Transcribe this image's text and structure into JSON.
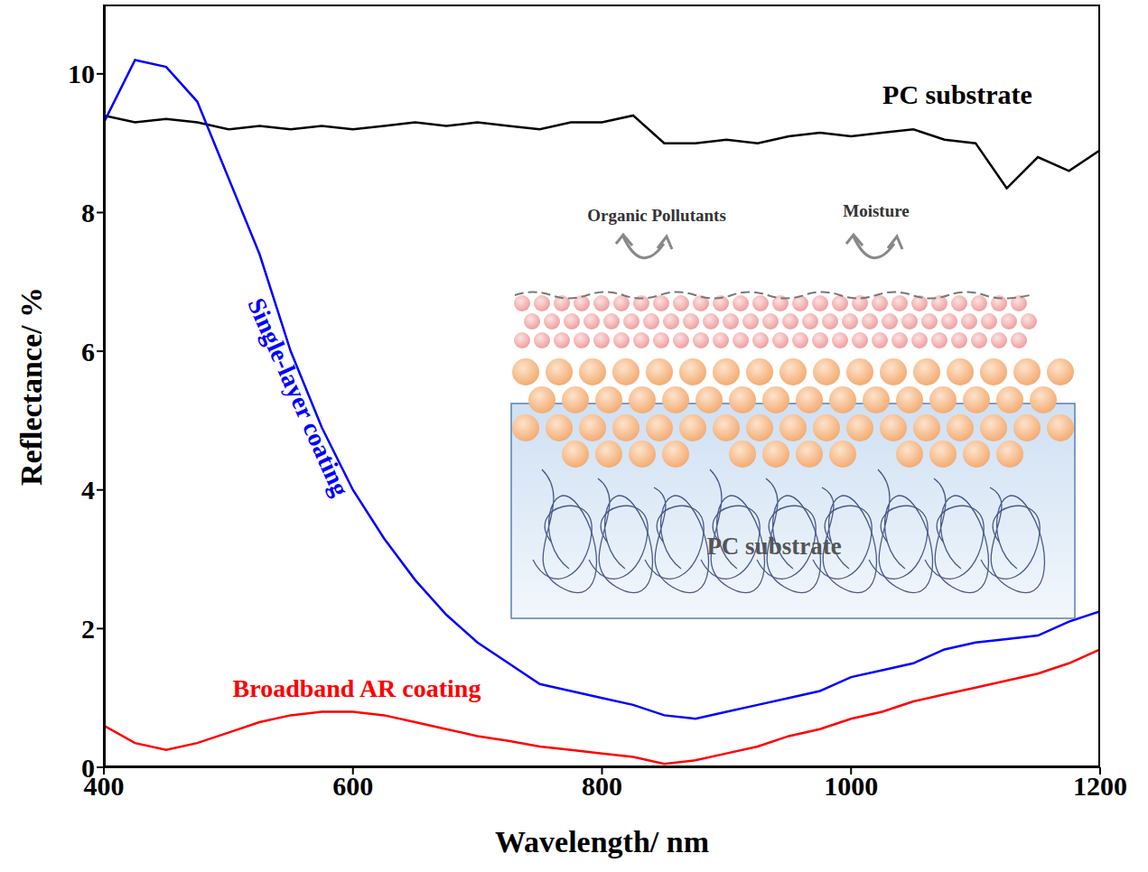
{
  "chart_data": {
    "type": "line",
    "x_label": "Wavelength/ nm",
    "y_label": "Reflectance/ %",
    "xlim": [
      400,
      1200
    ],
    "xticks": [
      400,
      600,
      800,
      1000,
      1200
    ],
    "ylim": [
      0,
      11
    ],
    "yticks": [
      0,
      2,
      4,
      6,
      8,
      10
    ],
    "grid": false,
    "x": [
      400,
      425,
      450,
      475,
      500,
      525,
      550,
      575,
      600,
      625,
      650,
      675,
      700,
      725,
      750,
      775,
      800,
      825,
      850,
      875,
      900,
      925,
      950,
      975,
      1000,
      1025,
      1050,
      1075,
      1100,
      1125,
      1150,
      1175,
      1200
    ],
    "series": [
      {
        "name": "PC substrate",
        "color": "#000000",
        "values": [
          9.4,
          9.3,
          9.35,
          9.3,
          9.2,
          9.25,
          9.2,
          9.25,
          9.2,
          9.25,
          9.3,
          9.25,
          9.3,
          9.25,
          9.2,
          9.3,
          9.3,
          9.4,
          9.0,
          9.0,
          9.05,
          9.0,
          9.1,
          9.15,
          9.1,
          9.15,
          9.2,
          9.05,
          9.0,
          8.35,
          8.8,
          8.6,
          8.9
        ]
      },
      {
        "name": "Single-layer coating",
        "color": "#0000ff",
        "values": [
          9.3,
          10.2,
          10.1,
          9.6,
          8.5,
          7.4,
          6.0,
          4.9,
          4.0,
          3.3,
          2.7,
          2.2,
          1.8,
          1.5,
          1.2,
          1.1,
          1.0,
          0.9,
          0.75,
          0.7,
          0.8,
          0.9,
          1.0,
          1.1,
          1.3,
          1.4,
          1.5,
          1.7,
          1.8,
          1.85,
          1.9,
          2.1,
          2.25
        ]
      },
      {
        "name": "Broadband AR coating",
        "color": "#ff0000",
        "values": [
          0.6,
          0.35,
          0.25,
          0.35,
          0.5,
          0.65,
          0.75,
          0.8,
          0.8,
          0.75,
          0.65,
          0.55,
          0.45,
          0.38,
          0.3,
          0.25,
          0.2,
          0.15,
          0.05,
          0.1,
          0.2,
          0.3,
          0.45,
          0.55,
          0.7,
          0.8,
          0.95,
          1.05,
          1.15,
          1.25,
          1.35,
          1.5,
          1.7
        ]
      }
    ]
  },
  "inset": {
    "top_labels": [
      "Organic Pollutants",
      "Moisture"
    ],
    "substrate_label": "PC substrate"
  }
}
